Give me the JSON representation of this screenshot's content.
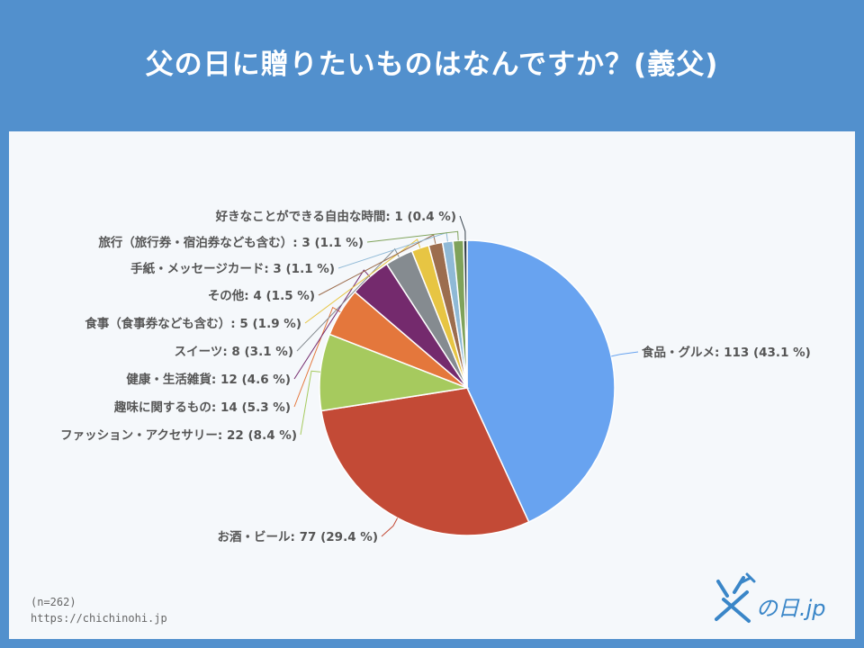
{
  "header": {
    "title": "父の日に贈りたいものはなんですか？(義父)"
  },
  "footer": {
    "sample_size": "(n=262)",
    "source_url": "https://chichinohi.jp"
  },
  "logo": {
    "text": "の日.jp"
  },
  "chart_data": {
    "type": "pie",
    "title": "父の日に贈りたいものはなんですか？(義父)",
    "total": 262,
    "slices": [
      {
        "label": "食品・グルメ",
        "value": 113,
        "percent": 43.1,
        "display": "食品・グルメ: 113 (43.1 %)",
        "color": "#68a3f0"
      },
      {
        "label": "お酒・ビール",
        "value": 77,
        "percent": 29.4,
        "display": "お酒・ビール: 77 (29.4 %)",
        "color": "#c34a36"
      },
      {
        "label": "ファッション・アクセサリー",
        "value": 22,
        "percent": 8.4,
        "display": "ファッション・アクセサリー: 22 (8.4 %)",
        "color": "#a6ca5e"
      },
      {
        "label": "趣味に関するもの",
        "value": 14,
        "percent": 5.3,
        "display": "趣味に関するもの: 14 (5.3 %)",
        "color": "#e4773c"
      },
      {
        "label": "健康・生活雑貨",
        "value": 12,
        "percent": 4.6,
        "display": "健康・生活雑貨: 12 (4.6 %)",
        "color": "#742a6d"
      },
      {
        "label": "スイーツ",
        "value": 8,
        "percent": 3.1,
        "display": "スイーツ: 8 (3.1 %)",
        "color": "#858b90"
      },
      {
        "label": "食事（食事券なども含む）",
        "value": 5,
        "percent": 1.9,
        "display": "食事（食事券なども含む）: 5 (1.9 %)",
        "color": "#e7c543"
      },
      {
        "label": "その他",
        "value": 4,
        "percent": 1.5,
        "display": "その他: 4 (1.5 %)",
        "color": "#9c6d4e"
      },
      {
        "label": "手紙・メッセージカード",
        "value": 3,
        "percent": 1.1,
        "display": "手紙・メッセージカード: 3 (1.1 %)",
        "color": "#8fb9d6"
      },
      {
        "label": "旅行（旅行券・宿泊券なども含む）",
        "value": 3,
        "percent": 1.1,
        "display": "旅行（旅行券・宿泊券なども含む）: 3 (1.1 %)",
        "color": "#7fa25a"
      },
      {
        "label": "好きなことができる自由な時間",
        "value": 1,
        "percent": 0.4,
        "display": "好きなことができる自由な時間: 1 (0.4 %)",
        "color": "#35404a"
      }
    ]
  }
}
